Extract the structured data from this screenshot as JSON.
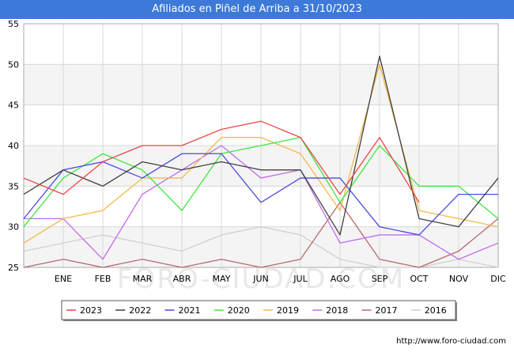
{
  "title": "Afiliados en Piñel de Arriba a 31/10/2023",
  "footer": "http://www.foro-ciudad.com",
  "watermark": "FORO-CIUDAD.COM",
  "chart_data": {
    "type": "line",
    "title": "Afiliados en Piñel de Arriba a 31/10/2023",
    "categories": [
      "",
      "ENE",
      "FEB",
      "MAR",
      "ABR",
      "MAY",
      "JUN",
      "JUL",
      "AGO",
      "SEP",
      "OCT",
      "NOV",
      "DIC"
    ],
    "ylim": [
      25,
      55
    ],
    "yticks": [
      25,
      30,
      35,
      40,
      45,
      50,
      55
    ],
    "grid": true,
    "legend_position": "bottom",
    "series": [
      {
        "name": "2023",
        "color": "#e8474b",
        "values": [
          36,
          34,
          38,
          40,
          40,
          42,
          43,
          41,
          34,
          41,
          33,
          null,
          null
        ]
      },
      {
        "name": "2022",
        "color": "#404040",
        "values": [
          34,
          37,
          35,
          38,
          37,
          38,
          37,
          37,
          29,
          51,
          31,
          30,
          36
        ]
      },
      {
        "name": "2021",
        "color": "#4a4ae0",
        "values": [
          31,
          37,
          38,
          36,
          39,
          39,
          33,
          36,
          36,
          30,
          29,
          34,
          34
        ]
      },
      {
        "name": "2020",
        "color": "#3fe63f",
        "values": [
          30,
          36,
          39,
          37,
          32,
          39,
          40,
          41,
          33,
          40,
          35,
          35,
          31
        ]
      },
      {
        "name": "2019",
        "color": "#f5b84a",
        "values": [
          28,
          31,
          32,
          36,
          36,
          41,
          41,
          39,
          32,
          50,
          32,
          31,
          30
        ]
      },
      {
        "name": "2018",
        "color": "#c06ee8",
        "values": [
          31,
          31,
          26,
          34,
          37,
          40,
          36,
          37,
          28,
          29,
          29,
          26,
          28
        ]
      },
      {
        "name": "2017",
        "color": "#b8696c",
        "values": [
          25,
          26,
          25,
          26,
          25,
          26,
          25,
          26,
          33,
          26,
          25,
          27,
          31
        ]
      },
      {
        "name": "2016",
        "color": "#d0d0d0",
        "values": [
          27,
          28,
          29,
          28,
          27,
          29,
          30,
          29,
          26,
          25,
          25,
          26,
          25
        ]
      }
    ]
  }
}
